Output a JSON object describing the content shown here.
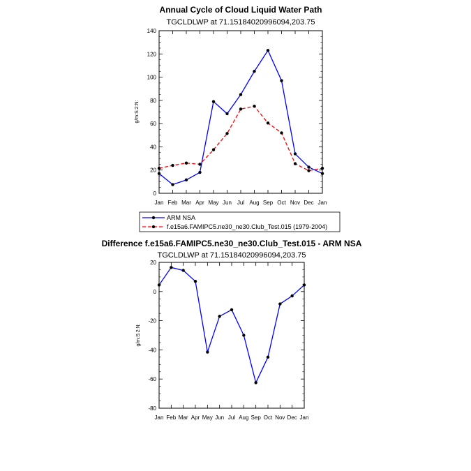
{
  "chart_data": [
    {
      "type": "line",
      "title": "Annual Cycle of Cloud Liquid Water Path",
      "subtitle": "TGCLDLWP at 71.15184020996094,203.75",
      "ylabel": "g/m:S:2:N:",
      "ylim": [
        0,
        140
      ],
      "yticks": [
        0,
        20,
        40,
        60,
        80,
        100,
        120,
        140
      ],
      "categories": [
        "Jan",
        "Feb",
        "Mar",
        "Apr",
        "May",
        "Jun",
        "Jul",
        "Aug",
        "Sep",
        "Oct",
        "Nov",
        "Dec",
        "Jan"
      ],
      "series": [
        {
          "name": "ARM NSA",
          "color": "#0000ff",
          "dash": "solid",
          "values": [
            17,
            7.5,
            11.5,
            18,
            79,
            68.5,
            85,
            105,
            123,
            97,
            34,
            22.5,
            17
          ]
        },
        {
          "name": "f.e15a6.FAMIPC5.ne30_ne30.Club_Test.015 (1979-2004)",
          "color": "#ff0000",
          "dash": "dashed",
          "values": [
            21.5,
            24,
            26,
            25,
            37.5,
            51.5,
            72.5,
            75,
            60.5,
            52,
            25.5,
            19.5,
            21.5
          ]
        }
      ],
      "legend": "bottom"
    },
    {
      "type": "line",
      "title": "Difference f.e15a6.FAMIPC5.ne30_ne30.Club_Test.015 - ARM NSA",
      "subtitle": "TGCLDLWP at 71.15184020996094,203.75",
      "ylabel": "g/m:S:2:N:",
      "ylim": [
        -80,
        20
      ],
      "yticks": [
        -80,
        -60,
        -40,
        -20,
        0,
        20
      ],
      "categories": [
        "Jan",
        "Feb",
        "Mar",
        "Apr",
        "May",
        "Jun",
        "Jul",
        "Aug",
        "Sep",
        "Oct",
        "Nov",
        "Dec",
        "Jan"
      ],
      "series": [
        {
          "color": "#0000ff",
          "dash": "solid",
          "values": [
            4.5,
            16.5,
            14.5,
            7,
            -41.5,
            -17,
            -12.5,
            -30,
            -62.5,
            -45,
            -8.5,
            -3,
            4.5
          ]
        }
      ]
    }
  ]
}
